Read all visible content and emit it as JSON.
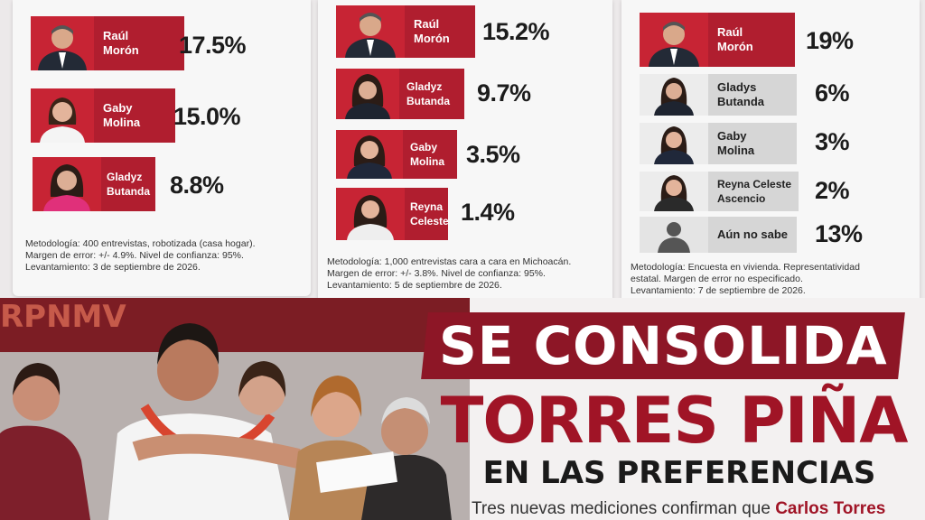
{
  "poll1": {
    "candidates": [
      {
        "name": "Raúl\nMorón",
        "pct": "17.5%"
      },
      {
        "name": "Gaby\nMolina",
        "pct": "15.0%"
      },
      {
        "name": "Gladyz\nButanda",
        "pct": "8.8%"
      }
    ],
    "methodology": "Metodología: 400 entrevistas, robotizada (casa hogar).",
    "margin": "Margen de error: +/- 4.9%. Nivel de confianza: 95%.",
    "date": "Levantamiento: 3 de septiembre de 2026."
  },
  "poll2": {
    "candidates": [
      {
        "name": "Raúl\nMorón",
        "pct": "15.2%"
      },
      {
        "name": "Gladyz\nButanda",
        "pct": "9.7%"
      },
      {
        "name": "Gaby\nMolina",
        "pct": "3.5%"
      },
      {
        "name": "Reyna\nCeleste",
        "pct": "1.4%"
      }
    ],
    "methodology": "Metodología: 1,000 entrevistas cara a cara en Michoacán.",
    "margin": "Margen de error: +/- 3.8%. Nivel de confianza: 95%.",
    "date": "Levantamiento: 5 de septiembre de 2026."
  },
  "poll3": {
    "candidates": [
      {
        "name": "Raúl\nMorón",
        "pct": "19%"
      },
      {
        "name": "Gladys\nButanda",
        "pct": "6%"
      },
      {
        "name": "Gaby\nMolina",
        "pct": "3%"
      },
      {
        "name": "Reyna Celeste\nAscencio",
        "pct": "2%"
      },
      {
        "name": "Aún no sabe",
        "pct": "13%"
      }
    ],
    "methodology": "Metodología: Encuesta en vivienda. Representatividad",
    "margin": "estatal. Margen de error no especificado.",
    "date": "Levantamiento: 7 de septiembre de 2026."
  },
  "headline": {
    "line1": "SE CONSOLIDA",
    "line2": "TORRES PIÑA",
    "line3": "EN LAS PREFERENCIAS",
    "subtitle_prefix": "Tres nuevas mediciones confirman que",
    "subtitle_name": "Carlos Torres Piña"
  },
  "banner_text": "RPNMV",
  "colors": {
    "brand_red": "#b01e2f",
    "dark_red": "#8d1626",
    "gray_box": "#d6d6d6"
  }
}
